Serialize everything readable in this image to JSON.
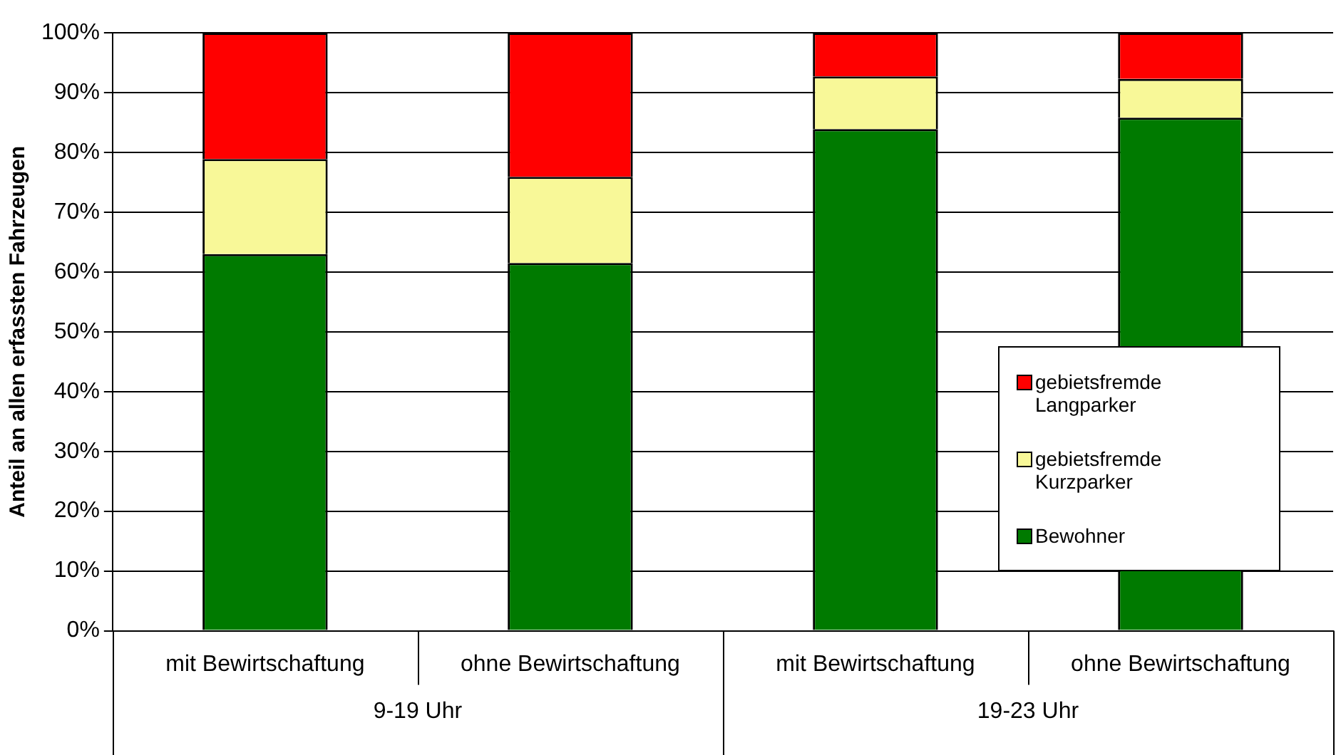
{
  "chart_data": {
    "type": "bar",
    "stacked": true,
    "ylabel": "Anteil an allen erfassten Fahrzeugen",
    "categories": [
      "mit Bewirtschaftung",
      "ohne Bewirtschaftung",
      "mit Bewirtschaftung",
      "ohne Bewirtschaftung"
    ],
    "series": [
      {
        "name": "Bewohner",
        "color": "#007a00",
        "values": [
          63,
          61.5,
          83.9,
          85.8
        ]
      },
      {
        "name": "gebietsfremde Kurzparker",
        "color": "#f8f898",
        "values": [
          15.9,
          14.4,
          8.8,
          6.5
        ]
      },
      {
        "name": "gebietsfremde Langparker",
        "color": "#ff0000",
        "values": [
          21.1,
          24.1,
          7.3,
          7.7
        ]
      }
    ],
    "ylim": [
      0,
      100
    ],
    "yticks": [
      {
        "value": 0,
        "label": "0%"
      },
      {
        "value": 10,
        "label": "10%"
      },
      {
        "value": 20,
        "label": "20%"
      },
      {
        "value": 30,
        "label": "30%"
      },
      {
        "value": 40,
        "label": "40%"
      },
      {
        "value": 50,
        "label": "50%"
      },
      {
        "value": 60,
        "label": "60%"
      },
      {
        "value": 70,
        "label": "70%"
      },
      {
        "value": 80,
        "label": "80%"
      },
      {
        "value": 90,
        "label": "90%"
      },
      {
        "value": 100,
        "label": "100%"
      }
    ],
    "annotations": [
      "9-19 Uhr",
      "19-23 Uhr"
    ],
    "grid": "y",
    "legend": "bottom right"
  }
}
